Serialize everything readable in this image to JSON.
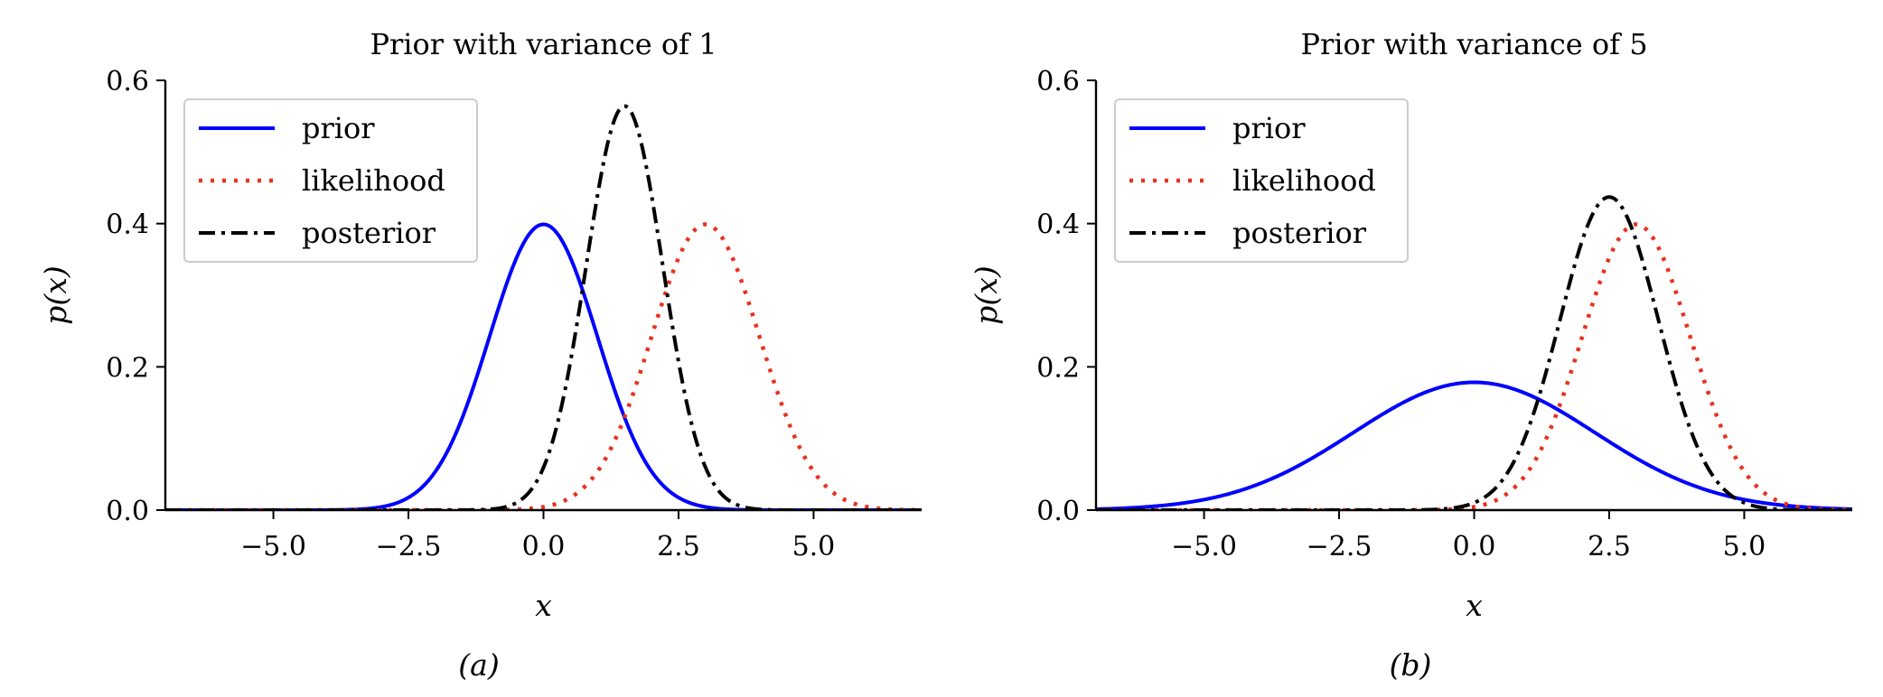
{
  "chart_data": [
    {
      "type": "line",
      "title": "Prior with variance of 1",
      "caption": "(a)",
      "xlabel": "x",
      "ylabel": "p(x)",
      "xlim": [
        -7,
        7
      ],
      "ylim": [
        0,
        0.6
      ],
      "xticks": [
        -5.0,
        -2.5,
        0.0,
        2.5,
        5.0
      ],
      "xtick_labels": [
        "−5.0",
        "−2.5",
        "0.0",
        "2.5",
        "5.0"
      ],
      "yticks": [
        0.0,
        0.2,
        0.4,
        0.6
      ],
      "ytick_labels": [
        "0.0",
        "0.2",
        "0.4",
        "0.6"
      ],
      "grid": false,
      "legend_position": "top-left",
      "series": [
        {
          "name": "prior",
          "mean": 0.0,
          "variance": 1.0,
          "peak": 0.4,
          "color": "#0000ff",
          "style": "solid"
        },
        {
          "name": "likelihood",
          "mean": 3.0,
          "variance": 1.0,
          "peak": 0.4,
          "color": "#e8321f",
          "style": "dotted"
        },
        {
          "name": "posterior",
          "mean": 1.5,
          "variance": 0.5,
          "peak": 0.56,
          "color": "#000000",
          "style": "dashdot"
        }
      ]
    },
    {
      "type": "line",
      "title": "Prior with variance of 5",
      "caption": "(b)",
      "xlabel": "x",
      "ylabel": "p(x)",
      "xlim": [
        -7,
        7
      ],
      "ylim": [
        0,
        0.6
      ],
      "xticks": [
        -5.0,
        -2.5,
        0.0,
        2.5,
        5.0
      ],
      "xtick_labels": [
        "−5.0",
        "−2.5",
        "0.0",
        "2.5",
        "5.0"
      ],
      "yticks": [
        0.0,
        0.2,
        0.4,
        0.6
      ],
      "ytick_labels": [
        "0.0",
        "0.2",
        "0.4",
        "0.6"
      ],
      "grid": false,
      "legend_position": "top-left",
      "series": [
        {
          "name": "prior",
          "mean": 0.0,
          "variance": 5.0,
          "peak": 0.178,
          "color": "#0000ff",
          "style": "solid"
        },
        {
          "name": "likelihood",
          "mean": 3.0,
          "variance": 1.0,
          "peak": 0.4,
          "color": "#e8321f",
          "style": "dotted"
        },
        {
          "name": "posterior",
          "mean": 2.5,
          "variance": 0.833,
          "peak": 0.437,
          "color": "#000000",
          "style": "dashdot"
        }
      ]
    }
  ]
}
